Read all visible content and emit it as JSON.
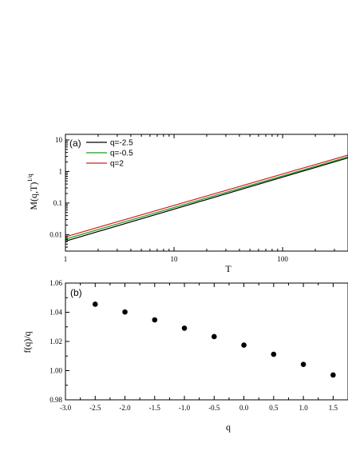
{
  "chart_data": [
    {
      "type": "line",
      "panel_label": "(a)",
      "xlabel": "T",
      "ylabel_base": "M(q,T)",
      "ylabel_sup": "1/q",
      "xscale": "log",
      "yscale": "log",
      "xlim": [
        1,
        400
      ],
      "ylim": [
        0.003,
        15
      ],
      "xticks": [
        1,
        10,
        100
      ],
      "xtick_labels": [
        "1",
        "10",
        "100"
      ],
      "yticks": [
        0.01,
        0.1,
        1,
        10
      ],
      "ytick_labels": [
        "0.01",
        "0.1",
        "1",
        "10"
      ],
      "legend_position": "top-left",
      "series": [
        {
          "name": "q=-2.5",
          "color": "#000000",
          "x": [
            1,
            400
          ],
          "y": [
            0.0062,
            2.7
          ]
        },
        {
          "name": "q=-0.5",
          "color": "#1a9e1a",
          "x": [
            1,
            400
          ],
          "y": [
            0.0072,
            2.9
          ]
        },
        {
          "name": "q=2",
          "color": "#d62020",
          "x": [
            1,
            400
          ],
          "y": [
            0.0085,
            3.3
          ]
        }
      ]
    },
    {
      "type": "scatter",
      "panel_label": "(b)",
      "xlabel": "q",
      "ylabel": "f(q)/q",
      "xlim": [
        -3.0,
        1.75
      ],
      "ylim": [
        0.98,
        1.06
      ],
      "xticks": [
        -3.0,
        -2.5,
        -2.0,
        -1.5,
        -1.0,
        -0.5,
        0.0,
        0.5,
        1.0,
        1.5
      ],
      "xtick_labels": [
        "-3.0",
        "-2.5",
        "-2.0",
        "-1.5",
        "-1.0",
        "-0.5",
        "0.0",
        "0.5",
        "1.0",
        "1.5"
      ],
      "yticks": [
        0.98,
        1.0,
        1.02,
        1.04,
        1.06
      ],
      "ytick_labels": [
        "0.98",
        "1.00",
        "1.02",
        "1.04",
        "1.06"
      ],
      "series": [
        {
          "color": "#000000",
          "x": [
            -2.5,
            -2.0,
            -1.5,
            -1.0,
            -0.5,
            0.0,
            0.5,
            1.0,
            1.5
          ],
          "y": [
            1.0455,
            1.0402,
            1.0348,
            1.0291,
            1.0233,
            1.0175,
            1.0112,
            1.0043,
            0.997
          ]
        }
      ]
    }
  ]
}
